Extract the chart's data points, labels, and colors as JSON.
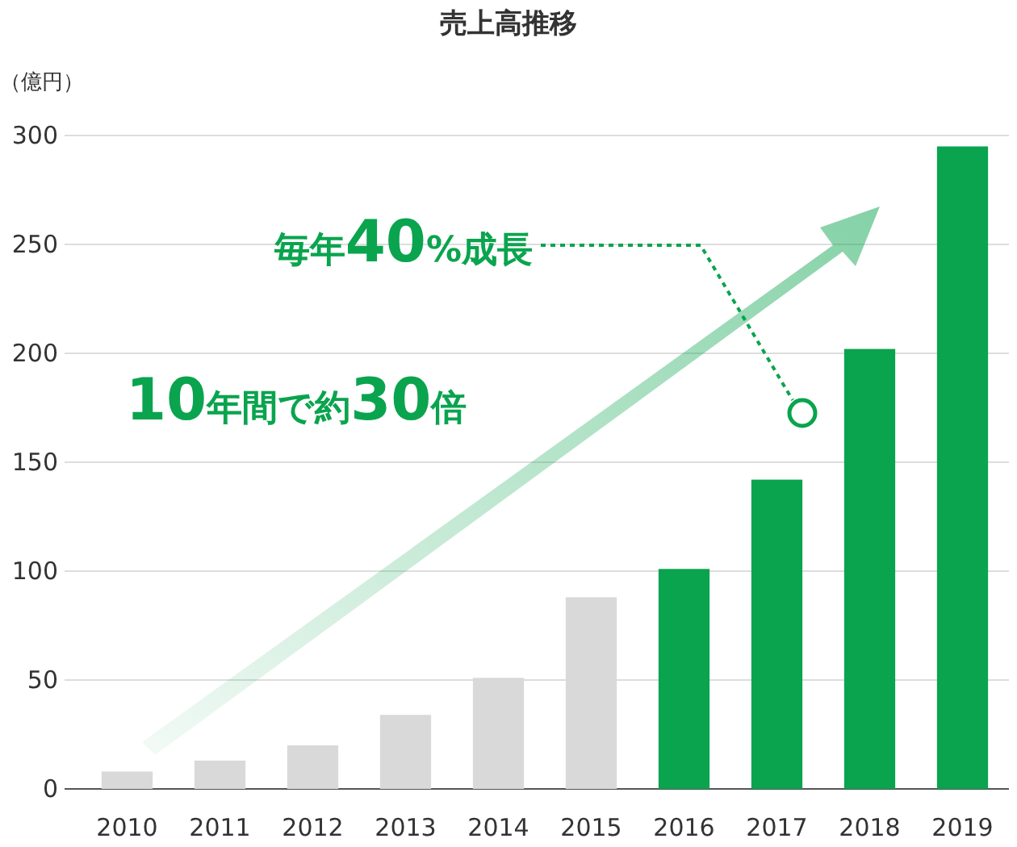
{
  "chart_data": {
    "type": "bar",
    "title": "売上高推移",
    "ylabel": "（億円）",
    "categories": [
      "2010",
      "2011",
      "2012",
      "2013",
      "2014",
      "2015",
      "2016",
      "2017",
      "2018",
      "2019"
    ],
    "values": [
      8,
      13,
      20,
      34,
      51,
      88,
      101,
      142,
      202,
      295
    ],
    "colors": [
      "#d9d9d9",
      "#d9d9d9",
      "#d9d9d9",
      "#d9d9d9",
      "#d9d9d9",
      "#d9d9d9",
      "#0aa44e",
      "#0aa44e",
      "#0aa44e",
      "#0aa44e"
    ],
    "ylim": [
      0,
      300
    ],
    "yticks": [
      0,
      50,
      100,
      150,
      200,
      250,
      300
    ],
    "grid": "y",
    "annotations": [
      "毎年40%成長",
      "10年間で約30倍"
    ]
  }
}
